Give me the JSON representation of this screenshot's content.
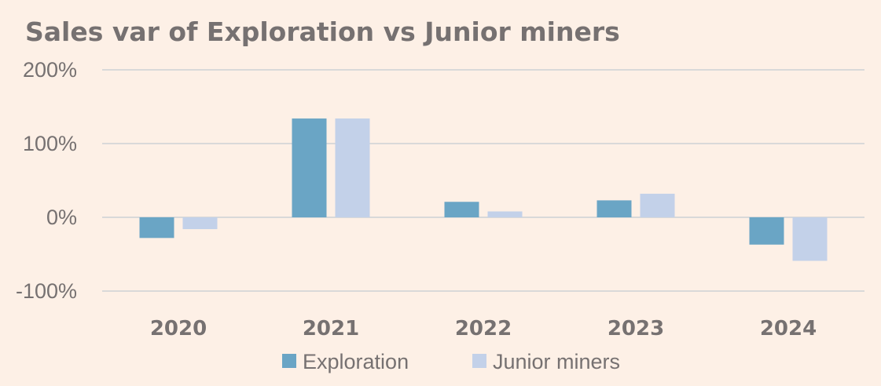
{
  "chart_data": {
    "type": "bar",
    "title": "Sales var of Exploration vs Junior miners",
    "categories": [
      "2020",
      "2021",
      "2022",
      "2023",
      "2024"
    ],
    "series": [
      {
        "name": "Exploration",
        "color": "#6aa5c5",
        "values": [
          -28,
          134,
          21,
          23,
          -37
        ]
      },
      {
        "name": "Junior miners",
        "color": "#c3d1e9",
        "values": [
          -16,
          134,
          8,
          32,
          -59
        ]
      }
    ],
    "ylim": [
      -100,
      200
    ],
    "yticks": [
      {
        "value": 200,
        "label": "200%"
      },
      {
        "value": 100,
        "label": "100%"
      },
      {
        "value": 0,
        "label": "0%"
      },
      {
        "value": -100,
        "label": "-100%"
      }
    ],
    "grid": true,
    "legend_position": "bottom"
  }
}
